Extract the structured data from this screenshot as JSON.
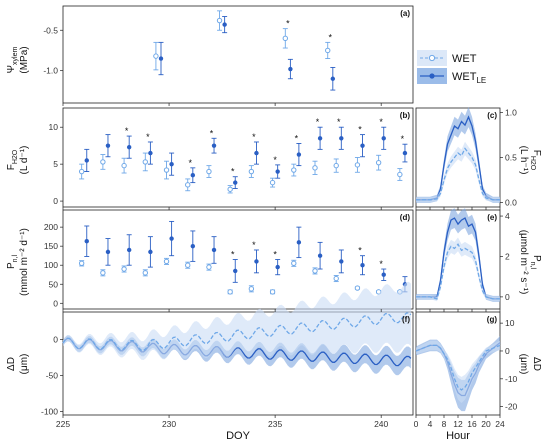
{
  "colors": {
    "wet": "#6fa8e8",
    "wet_le": "#2a5fc4",
    "wet_band": "#c9dcf5",
    "wet_le_band": "#7fa6e0"
  },
  "legend": {
    "wet": "WET",
    "wet_le_base": "WET",
    "wet_le_sub": "LE"
  },
  "x_title_doy": "DOY",
  "x_title_hour": "Hour",
  "ylabels": {
    "a": {
      "main": "Ψ",
      "sub": "xylem",
      "unit": "(MPa)"
    },
    "b": {
      "main": "F",
      "sub": "H2O",
      "unit": "(L d⁻¹)"
    },
    "c": {
      "main": "F",
      "sub": "H2O",
      "unit": "(L h⁻¹)"
    },
    "d": {
      "main": "P",
      "sub": "n,l",
      "unit": "(mmol m⁻² d⁻¹)"
    },
    "e": {
      "main": "P",
      "sub": "n,l",
      "unit": "(μmol m⁻² s⁻¹)"
    },
    "f": {
      "main": "ΔD",
      "sub": "",
      "unit": "(μm)"
    },
    "g": {
      "main": "ΔD",
      "sub": "",
      "unit": "(μm)"
    }
  },
  "chart_data": [
    {
      "panel": "(a)",
      "type": "scatter",
      "xlim": [
        225,
        241.5
      ],
      "ylim": [
        -1.4,
        -0.2
      ],
      "yticks": [
        -1.0,
        -0.5
      ],
      "ytick_labels": [
        "-1.0",
        "-0.5"
      ],
      "x_ticks": [
        225,
        230,
        235,
        240
      ],
      "series": [
        {
          "name": "WET",
          "x": [
            229.5,
            232.5,
            235.6,
            237.6
          ],
          "y": [
            -0.82,
            -0.38,
            -0.6,
            -0.75
          ],
          "err": [
            0.17,
            0.12,
            0.12,
            0.1
          ]
        },
        {
          "name": "WET_LE",
          "x": [
            229.5,
            232.5,
            235.6,
            237.6
          ],
          "y": [
            -0.85,
            -0.43,
            -0.98,
            -1.1
          ],
          "err": [
            0.2,
            0.1,
            0.12,
            0.14
          ]
        }
      ],
      "significance_x": [
        235.6,
        237.6
      ]
    },
    {
      "panel": "(b)",
      "type": "scatter",
      "xlim": [
        225,
        241.5
      ],
      "ylim": [
        -0.8,
        12.6
      ],
      "yticks": [
        0,
        5,
        10
      ],
      "ytick_labels": [
        "0",
        "5",
        "10"
      ],
      "series": [
        {
          "name": "WET",
          "x": [
            226,
            227,
            228,
            229,
            230,
            231,
            232,
            233,
            234,
            235,
            236,
            237,
            238,
            239,
            240,
            241
          ],
          "y": [
            4.0,
            5.3,
            4.8,
            5.3,
            4.2,
            2.2,
            4.0,
            1.6,
            4.0,
            2.5,
            4.2,
            4.5,
            4.8,
            4.9,
            5.2,
            3.6
          ],
          "err": [
            1.0,
            1.0,
            1.0,
            1.2,
            1.2,
            0.8,
            0.8,
            0.5,
            0.8,
            0.6,
            0.8,
            0.9,
            0.9,
            1.0,
            1.0,
            0.8
          ]
        },
        {
          "name": "WET_LE",
          "x": [
            226,
            227,
            228,
            229,
            230,
            231,
            232,
            233,
            234,
            235,
            236,
            237,
            238,
            239,
            240,
            241
          ],
          "y": [
            5.5,
            7.5,
            7.3,
            6.5,
            5.0,
            3.5,
            7.5,
            2.5,
            6.5,
            4.0,
            6.3,
            8.5,
            8.5,
            7.5,
            8.5,
            6.5
          ],
          "err": [
            1.5,
            1.5,
            1.5,
            1.5,
            1.5,
            1.0,
            1.0,
            0.8,
            1.5,
            0.9,
            1.5,
            1.5,
            1.5,
            1.5,
            1.5,
            1.2
          ]
        }
      ],
      "significance_x": [
        228,
        229,
        231,
        232,
        233,
        234,
        235,
        236,
        237,
        238,
        239,
        240,
        241
      ]
    },
    {
      "panel": "(d)",
      "type": "scatter",
      "xlim": [
        225,
        241.5
      ],
      "ylim": [
        -15,
        245
      ],
      "yticks": [
        0,
        50,
        100,
        150,
        200
      ],
      "ytick_labels": [
        "0",
        "50",
        "100",
        "150",
        "200"
      ],
      "series": [
        {
          "name": "WET",
          "x": [
            226,
            227,
            228,
            229,
            230,
            231,
            232,
            233,
            234,
            235,
            236,
            237,
            238,
            239,
            240,
            241
          ],
          "y": [
            105,
            80,
            90,
            80,
            110,
            100,
            95,
            30,
            38,
            30,
            105,
            85,
            65,
            40,
            30,
            30
          ],
          "err": [
            7,
            8,
            8,
            8,
            8,
            8,
            8,
            5,
            8,
            5,
            8,
            8,
            8,
            3,
            3,
            3
          ]
        },
        {
          "name": "WET_LE",
          "x": [
            226,
            227,
            228,
            229,
            230,
            231,
            232,
            233,
            234,
            235,
            236,
            237,
            238,
            239,
            240,
            241
          ],
          "y": [
            163,
            135,
            140,
            135,
            170,
            150,
            140,
            85,
            110,
            95,
            160,
            125,
            110,
            100,
            75,
            50
          ],
          "err": [
            40,
            35,
            40,
            40,
            45,
            40,
            35,
            30,
            30,
            20,
            40,
            35,
            30,
            25,
            15,
            20
          ]
        }
      ],
      "significance_x": [
        233,
        234,
        235,
        239,
        240
      ]
    },
    {
      "panel": "(f)",
      "type": "line",
      "xlim": [
        225,
        241.5
      ],
      "ylim": [
        -105,
        38
      ],
      "yticks": [
        -100,
        -50,
        0
      ],
      "ytick_labels": [
        "-100",
        "-50",
        "0"
      ],
      "xticks": [
        225,
        230,
        235,
        240
      ],
      "xtick_labels": [
        "225",
        "230",
        "235",
        "240"
      ],
      "series": [
        {
          "name": "WET",
          "style": "dashed"
        },
        {
          "name": "WET_LE",
          "style": "solid"
        }
      ]
    },
    {
      "panel": "(c)",
      "type": "line",
      "xlim": [
        0,
        24
      ],
      "ylim": [
        -0.05,
        1.05
      ],
      "yticks": [
        0.0,
        0.5,
        1.0
      ],
      "ytick_labels": [
        "0.0",
        "0.5",
        "1.0"
      ],
      "hours": [
        0,
        2,
        4,
        6,
        7,
        8,
        9,
        10,
        11,
        12,
        13,
        14,
        15,
        16,
        17,
        18,
        19,
        20,
        22,
        24
      ],
      "series": [
        {
          "name": "WET",
          "y": [
            0.03,
            0.03,
            0.03,
            0.04,
            0.1,
            0.25,
            0.38,
            0.45,
            0.5,
            0.55,
            0.52,
            0.6,
            0.55,
            0.5,
            0.42,
            0.25,
            0.1,
            0.05,
            0.03,
            0.03
          ]
        },
        {
          "name": "WET_LE",
          "y": [
            0.03,
            0.03,
            0.03,
            0.05,
            0.15,
            0.42,
            0.65,
            0.75,
            0.85,
            0.82,
            0.9,
            0.86,
            0.95,
            0.85,
            0.68,
            0.42,
            0.15,
            0.07,
            0.03,
            0.03
          ]
        }
      ]
    },
    {
      "panel": "(e)",
      "type": "line",
      "xlim": [
        0,
        24
      ],
      "ylim": [
        -0.6,
        4.3
      ],
      "yticks": [
        0,
        2,
        4
      ],
      "ytick_labels": [
        "0",
        "2",
        "4"
      ],
      "hours": [
        0,
        2,
        4,
        6,
        7,
        8,
        9,
        10,
        11,
        12,
        13,
        14,
        15,
        16,
        17,
        18,
        19,
        20,
        22,
        24
      ],
      "series": [
        {
          "name": "WET",
          "y": [
            0,
            0,
            0,
            -0.1,
            0.5,
            1.5,
            2.2,
            2.5,
            2.4,
            2.6,
            2.3,
            2.4,
            2.3,
            2.2,
            1.8,
            1.0,
            0.3,
            0,
            -0.1,
            -0.1
          ]
        },
        {
          "name": "WET_LE",
          "y": [
            0,
            0,
            0,
            0,
            0.8,
            2.2,
            3.2,
            3.8,
            3.9,
            3.6,
            3.8,
            3.9,
            3.5,
            3.6,
            3.2,
            2.0,
            0.6,
            0,
            -0.1,
            -0.1
          ]
        }
      ]
    },
    {
      "panel": "(g)",
      "type": "line",
      "xlim": [
        0,
        24
      ],
      "ylim": [
        -23,
        14
      ],
      "yticks": [
        -20,
        -10,
        0,
        10
      ],
      "ytick_labels": [
        "-20",
        "-10",
        "0",
        "10"
      ],
      "xticks": [
        0,
        4,
        8,
        12,
        16,
        20,
        24
      ],
      "xtick_labels": [
        "0",
        "4",
        "8",
        "12",
        "16",
        "20",
        "24"
      ],
      "hours": [
        0,
        2,
        4,
        6,
        7,
        8,
        9,
        10,
        11,
        12,
        13,
        14,
        15,
        16,
        17,
        18,
        19,
        20,
        22,
        24
      ],
      "series": [
        {
          "name": "WET",
          "y": [
            0,
            1,
            2,
            2,
            1,
            -1,
            -3,
            -6,
            -10,
            -13,
            -14,
            -13,
            -11,
            -8,
            -6,
            -4,
            -2,
            0,
            1,
            2
          ]
        },
        {
          "name": "WET_LE",
          "y": [
            0,
            1,
            2,
            2,
            1,
            -1,
            -4,
            -8,
            -12,
            -15,
            -16,
            -16,
            -13,
            -10,
            -8,
            -5,
            -3,
            -1,
            1,
            3
          ]
        }
      ]
    }
  ]
}
